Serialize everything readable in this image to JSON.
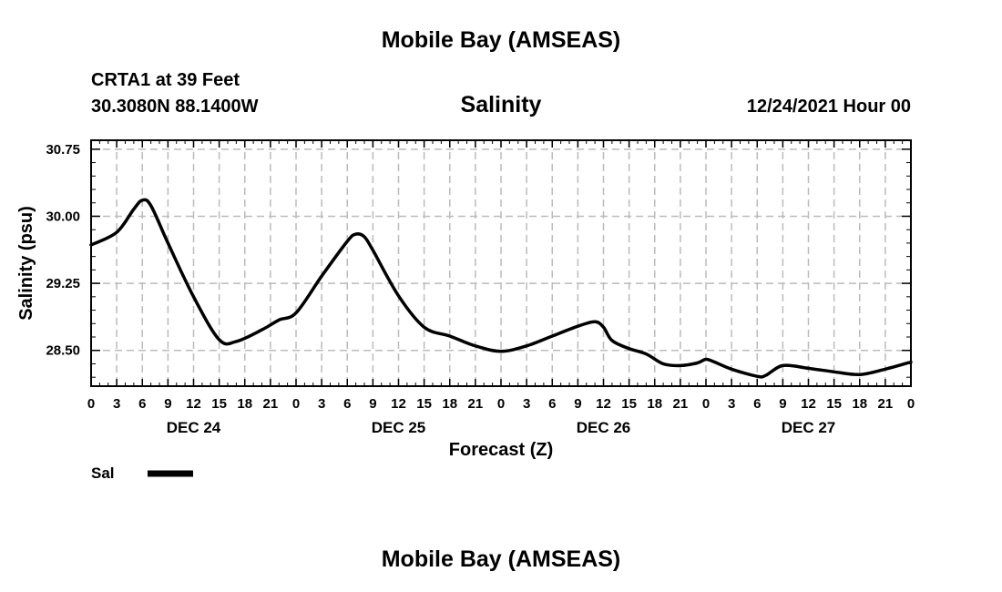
{
  "page": {
    "title_top": "Mobile Bay (AMSEAS)",
    "title_bottom": "Mobile Bay (AMSEAS)",
    "station": "CRTA1 at 39 Feet",
    "location": "30.3080N  88.1400W",
    "datetime": "12/24/2021 Hour 00"
  },
  "chart_data": {
    "type": "line",
    "title": "Salinity",
    "xlabel": "Forecast (Z)",
    "ylabel": "Salinity (psu)",
    "xlim": [
      0,
      96
    ],
    "ylim": [
      28.1,
      30.85
    ],
    "grid": true,
    "legend_position": "bottom-left",
    "y_ticks": [
      28.5,
      29.25,
      30.0,
      30.75
    ],
    "y_tick_labels": [
      "28.50",
      "29.25",
      "30.00",
      "30.75"
    ],
    "x_tick_hours": [
      0,
      3,
      6,
      9,
      12,
      15,
      18,
      21,
      24,
      27,
      30,
      33,
      36,
      39,
      42,
      45,
      48,
      51,
      54,
      57,
      60,
      63,
      66,
      69,
      72,
      75,
      78,
      81,
      84,
      87,
      90,
      93,
      96
    ],
    "x_tick_labels": [
      "0",
      "3",
      "6",
      "9",
      "12",
      "15",
      "18",
      "21",
      "0",
      "3",
      "6",
      "9",
      "12",
      "15",
      "18",
      "21",
      "0",
      "3",
      "6",
      "9",
      "12",
      "15",
      "18",
      "21",
      "0",
      "3",
      "6",
      "9",
      "12",
      "15",
      "18",
      "21",
      "0"
    ],
    "date_labels": [
      {
        "hour": 12,
        "label": "DEC 24"
      },
      {
        "hour": 36,
        "label": "DEC 25"
      },
      {
        "hour": 60,
        "label": "DEC 26"
      },
      {
        "hour": 84,
        "label": "DEC 27"
      }
    ],
    "series": [
      {
        "name": "Sal",
        "color": "#000000",
        "x": [
          0,
          3,
          5,
          6,
          7,
          9,
          12,
          15,
          17,
          20,
          22,
          24,
          27,
          30,
          31,
          32,
          33,
          36,
          39,
          42,
          45,
          48,
          51,
          54,
          57,
          59,
          60,
          61,
          63,
          65,
          67,
          69,
          71,
          72,
          73,
          75,
          78,
          79,
          81,
          84,
          87,
          90,
          93,
          96
        ],
        "values": [
          29.68,
          29.82,
          30.08,
          30.18,
          30.12,
          29.7,
          29.1,
          28.62,
          28.6,
          28.73,
          28.84,
          28.92,
          29.33,
          29.72,
          29.8,
          29.77,
          29.62,
          29.11,
          28.76,
          28.66,
          28.55,
          28.49,
          28.55,
          28.66,
          28.77,
          28.82,
          28.76,
          28.61,
          28.52,
          28.46,
          28.35,
          28.33,
          28.36,
          28.4,
          28.37,
          28.29,
          28.21,
          28.22,
          28.33,
          28.3,
          28.26,
          28.23,
          28.29,
          28.37
        ]
      }
    ]
  }
}
